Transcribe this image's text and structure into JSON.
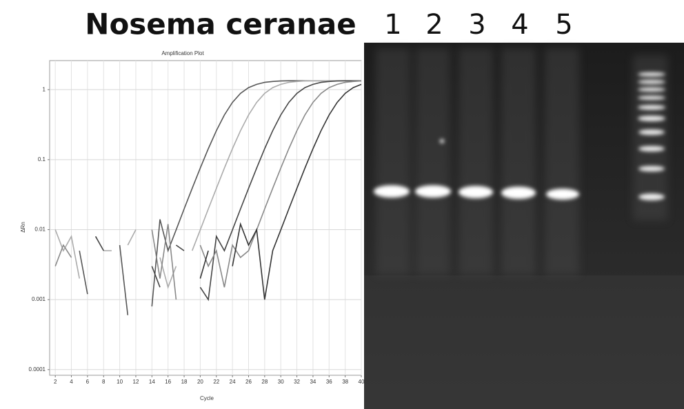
{
  "figure_title": "Nosema ceranae",
  "lanes": [
    "1",
    "2",
    "3",
    "4",
    "5"
  ],
  "chart_data": {
    "type": "line",
    "title": "Amplification Plot",
    "x_label": "Cycle",
    "y_label": "ΔRn",
    "log_y": true,
    "grid": true,
    "x": [
      2,
      3,
      4,
      5,
      6,
      7,
      8,
      9,
      10,
      11,
      12,
      13,
      14,
      15,
      16,
      17,
      18,
      19,
      20,
      21,
      22,
      23,
      24,
      25,
      26,
      27,
      28,
      29,
      30,
      31,
      32,
      33,
      34,
      35,
      36,
      37,
      38,
      39,
      40
    ],
    "xlim": [
      1.3,
      40
    ],
    "xticks": [
      2,
      4,
      6,
      8,
      10,
      12,
      14,
      16,
      18,
      20,
      22,
      24,
      26,
      28,
      30,
      32,
      34,
      36,
      38,
      40
    ],
    "ylim": [
      8.3e-05,
      2.6
    ],
    "yticks": [
      0.0001,
      0.001,
      0.01,
      0.1,
      1
    ],
    "series": [
      {
        "color": "#555555",
        "values": [
          null,
          null,
          null,
          0.005,
          0.0012,
          null,
          null,
          null,
          0.006,
          0.0006,
          null,
          null,
          0.0008,
          0.014,
          0.005,
          0.0099,
          0.0197,
          0.0388,
          0.0755,
          0.143,
          0.259,
          0.434,
          0.658,
          0.884,
          1.07,
          1.19,
          1.27,
          1.31,
          1.33,
          1.34,
          1.34,
          1.34,
          1.34,
          1.34,
          1.34,
          1.34,
          1.34,
          1.34,
          1.34
        ]
      },
      {
        "color": "#aaaaaa",
        "values": [
          0.01,
          0.005,
          0.008,
          0.002,
          null,
          null,
          0.005,
          0.005,
          null,
          0.006,
          0.01,
          null,
          null,
          0.004,
          0.0015,
          0.003,
          null,
          0.005,
          0.0099,
          0.0197,
          0.0388,
          0.0755,
          0.143,
          0.259,
          0.434,
          0.658,
          0.884,
          1.07,
          1.19,
          1.27,
          1.31,
          1.33,
          1.34,
          1.34,
          1.34,
          1.34,
          1.34,
          1.34,
          1.34
        ]
      },
      {
        "color": "#444444",
        "values": [
          null,
          null,
          null,
          null,
          null,
          0.008,
          0.005,
          null,
          null,
          null,
          null,
          null,
          0.003,
          0.0015,
          null,
          0.006,
          0.005,
          null,
          0.0015,
          0.001,
          0.008,
          0.005,
          0.0099,
          0.0197,
          0.0388,
          0.0755,
          0.143,
          0.259,
          0.434,
          0.658,
          0.884,
          1.07,
          1.19,
          1.27,
          1.31,
          1.33,
          1.34,
          1.34,
          1.34
        ]
      },
      {
        "color": "#888888",
        "values": [
          0.003,
          0.006,
          0.004,
          null,
          null,
          null,
          null,
          null,
          null,
          null,
          null,
          null,
          0.01,
          0.002,
          0.012,
          0.001,
          null,
          null,
          0.006,
          0.003,
          0.005,
          0.0015,
          0.006,
          0.004,
          0.005,
          0.0099,
          0.0197,
          0.0388,
          0.0755,
          0.143,
          0.259,
          0.434,
          0.658,
          0.884,
          1.07,
          1.19,
          1.27,
          1.31,
          1.33
        ]
      },
      {
        "color": "#333333",
        "values": [
          null,
          null,
          null,
          null,
          null,
          null,
          null,
          null,
          null,
          null,
          null,
          null,
          null,
          null,
          null,
          null,
          null,
          null,
          0.002,
          0.005,
          null,
          null,
          0.003,
          0.012,
          0.006,
          0.01,
          0.001,
          0.005,
          0.0099,
          0.0197,
          0.0388,
          0.0755,
          0.143,
          0.259,
          0.434,
          0.658,
          0.884,
          1.07,
          1.19
        ]
      }
    ]
  }
}
